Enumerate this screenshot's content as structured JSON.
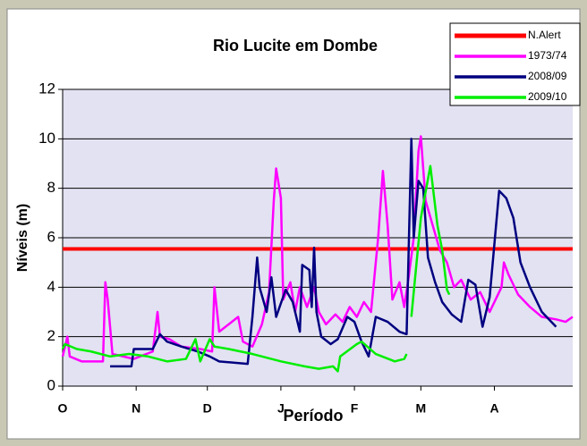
{
  "chart_data": {
    "type": "line",
    "title": "Rio  Lucite em Dombe",
    "x_label": "Período",
    "y_label": "Níveis (m)",
    "xlim": [
      0,
      215
    ],
    "xticks": [
      {
        "value": 0,
        "label": "O"
      },
      {
        "value": 31,
        "label": "N"
      },
      {
        "value": 61,
        "label": "D"
      },
      {
        "value": 92,
        "label": "J"
      },
      {
        "value": 123,
        "label": "F"
      },
      {
        "value": 151,
        "label": "M"
      },
      {
        "value": 182,
        "label": "A"
      }
    ],
    "ylim": [
      0,
      12
    ],
    "yticks": [
      0,
      2,
      4,
      6,
      8,
      10,
      12
    ],
    "grid": true,
    "legend": "upper right",
    "series": [
      {
        "name": "N.Alert",
        "color": "#ff0000",
        "width": 4,
        "x": [
          0,
          215
        ],
        "values": [
          5.55,
          5.55
        ]
      },
      {
        "name": "1973/74",
        "color": "#ff00ff",
        "width": 2.5,
        "x": [
          0,
          2,
          3,
          8,
          17,
          18,
          19,
          21,
          30,
          38,
          40,
          41,
          45,
          50,
          58,
          63,
          64,
          66,
          70,
          74,
          76,
          80,
          84,
          87,
          89,
          90,
          92,
          93,
          96,
          98,
          100,
          103,
          106,
          108,
          111,
          115,
          118,
          121,
          124,
          127,
          130,
          133,
          135,
          137,
          139,
          142,
          144,
          146,
          148,
          150,
          151,
          153,
          156,
          159,
          162,
          165,
          168,
          172,
          176,
          180,
          185,
          186,
          188,
          192,
          197,
          202,
          208,
          212,
          215
        ],
        "values": [
          1.2,
          2.0,
          1.2,
          1.0,
          1.0,
          4.2,
          3.5,
          1.3,
          1.1,
          1.4,
          3.0,
          2.0,
          1.9,
          1.6,
          1.5,
          1.4,
          4.0,
          2.2,
          2.5,
          2.8,
          1.8,
          1.6,
          2.5,
          3.8,
          7.5,
          8.8,
          7.6,
          3.5,
          4.2,
          3.0,
          4.0,
          3.2,
          4.0,
          3.0,
          2.5,
          2.9,
          2.6,
          3.2,
          2.8,
          3.4,
          3.0,
          6.0,
          8.7,
          6.5,
          3.5,
          4.2,
          3.2,
          4.5,
          6.0,
          9.5,
          10.1,
          7.5,
          6.5,
          5.5,
          5.0,
          4.0,
          4.3,
          3.5,
          3.8,
          3.0,
          4.0,
          5.0,
          4.5,
          3.7,
          3.2,
          2.8,
          2.7,
          2.6,
          2.8
        ]
      },
      {
        "name": "2008/09",
        "color": "#000080",
        "width": 2.5,
        "x": [
          20,
          29,
          30,
          38,
          41,
          44,
          50,
          57,
          62,
          66,
          78,
          80,
          82,
          83,
          86,
          88,
          90,
          94,
          97,
          100,
          101,
          104,
          105,
          106,
          107,
          109,
          113,
          116,
          120,
          123,
          126,
          129,
          132,
          137,
          142,
          145,
          147,
          148,
          150,
          152,
          154,
          157,
          160,
          164,
          168,
          171,
          174,
          177,
          180,
          184,
          187,
          190,
          193,
          197,
          202,
          208
        ],
        "values": [
          0.8,
          0.8,
          1.5,
          1.5,
          2.1,
          1.8,
          1.6,
          1.4,
          1.2,
          1.0,
          0.9,
          2.8,
          5.2,
          4.0,
          3.0,
          4.4,
          2.8,
          3.9,
          3.4,
          2.2,
          4.9,
          4.7,
          3.2,
          5.6,
          3.0,
          2.0,
          1.7,
          1.9,
          2.8,
          2.6,
          1.8,
          1.2,
          2.8,
          2.6,
          2.2,
          2.1,
          10.0,
          6.0,
          8.3,
          8.0,
          5.2,
          4.2,
          3.4,
          2.9,
          2.6,
          4.3,
          4.1,
          2.4,
          3.6,
          7.9,
          7.6,
          6.8,
          5.0,
          4.0,
          3.0,
          2.4
        ]
      },
      {
        "name": "2009/10",
        "color": "#00ee00",
        "width": 2.5,
        "x": [
          0,
          1,
          6,
          12,
          20,
          28,
          36,
          44,
          52,
          56,
          58,
          62,
          64,
          70,
          80,
          92,
          102,
          108,
          114,
          116,
          117,
          124,
          126,
          132,
          140,
          144,
          145,
          146,
          147,
          151,
          155,
          158,
          160,
          162,
          163
        ],
        "values": [
          1.5,
          1.7,
          1.5,
          1.4,
          1.2,
          1.3,
          1.2,
          1.0,
          1.1,
          1.9,
          1.0,
          1.9,
          1.6,
          1.5,
          1.3,
          1.0,
          0.8,
          0.7,
          0.8,
          0.6,
          1.2,
          1.7,
          1.8,
          1.3,
          1.0,
          1.1,
          1.3,
          null,
          2.8,
          6.8,
          8.9,
          6.5,
          5.5,
          3.9,
          3.7
        ]
      }
    ]
  }
}
